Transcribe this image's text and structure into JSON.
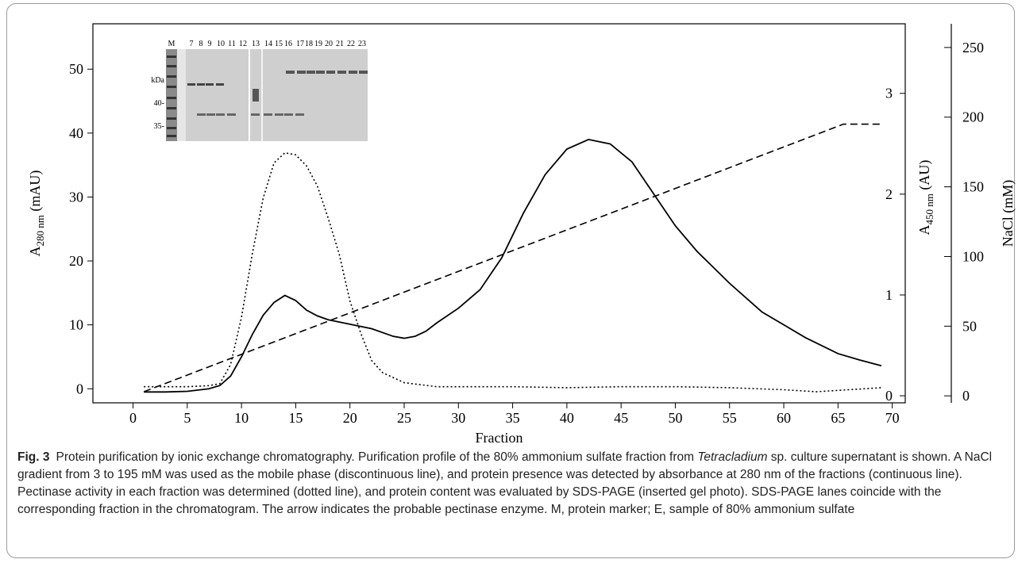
{
  "chart_data": {
    "type": "line",
    "x_label": "Fraction",
    "y_label": {
      "main": "A",
      "sub": "280 nm",
      "unit": " (mAU)"
    },
    "y2_label": {
      "main": "A",
      "sub": "450 nm",
      "unit": " (AU)"
    },
    "y3_label": "NaCl (mM)",
    "xlim": [
      -3.7,
      71.2
    ],
    "xticks": [
      0,
      5,
      10,
      15,
      20,
      25,
      30,
      35,
      40,
      45,
      50,
      55,
      60,
      65,
      70
    ],
    "ylim": [
      -2.2,
      57.1
    ],
    "yticks": [
      0,
      10,
      20,
      30,
      40,
      50
    ],
    "y2lim": [
      -0.07,
      3.69
    ],
    "y2ticks": [
      0,
      1,
      2,
      3
    ],
    "y3lim": [
      -5,
      267
    ],
    "y3ticks": [
      0,
      50,
      100,
      150,
      200,
      250
    ],
    "series": [
      {
        "style": "solid",
        "color": "#000000",
        "axis": "y",
        "x": [
          1,
          3,
          5,
          7,
          8,
          9,
          10,
          11,
          12,
          13,
          14,
          15,
          16,
          17,
          18,
          20,
          22,
          24,
          25,
          26,
          27,
          28,
          30,
          32,
          34,
          36,
          38,
          40,
          42,
          44,
          46,
          48,
          50,
          52,
          55,
          58,
          60,
          62,
          65,
          67,
          69
        ],
        "values": [
          -0.5,
          -0.5,
          -0.4,
          0,
          0.5,
          2,
          5,
          8.5,
          11.5,
          13.5,
          14.6,
          13.8,
          12.3,
          11.4,
          10.8,
          10.1,
          9.4,
          8.2,
          7.9,
          8.2,
          9,
          10.3,
          12.6,
          15.5,
          20.5,
          27.5,
          33.5,
          37.5,
          39,
          38.3,
          35.5,
          30.5,
          25.5,
          21.5,
          16.5,
          12,
          10,
          8,
          5.5,
          4.5,
          3.6
        ]
      },
      {
        "style": "dotted",
        "color": "#000000",
        "axis": "y2",
        "x": [
          1,
          5,
          7,
          8,
          9,
          10,
          11,
          12,
          13,
          14,
          15,
          16,
          17,
          18,
          19,
          20,
          21,
          22,
          23,
          25,
          28,
          35,
          40,
          45,
          50,
          55,
          60,
          63,
          66,
          69
        ],
        "values": [
          0.09,
          0.09,
          0.1,
          0.12,
          0.31,
          0.78,
          1.41,
          1.96,
          2.31,
          2.41,
          2.39,
          2.28,
          2.08,
          1.76,
          1.41,
          0.94,
          0.62,
          0.35,
          0.23,
          0.13,
          0.09,
          0.09,
          0.08,
          0.09,
          0.09,
          0.08,
          0.06,
          0.04,
          0.06,
          0.08
        ]
      },
      {
        "style": "dashed",
        "color": "#000000",
        "axis": "y3",
        "x": [
          1,
          65.5,
          69
        ],
        "values": [
          3,
          195,
          195
        ]
      }
    ],
    "inset": {
      "lane_labels": [
        "M",
        "7",
        "8",
        "9",
        "10",
        "11",
        "12",
        "13",
        "14",
        "15",
        "16",
        "17",
        "18",
        "19",
        "20",
        "21",
        "22",
        "23"
      ],
      "marker_labels": [
        "kDa",
        "40-",
        "35-"
      ]
    },
    "caption": {
      "label": "Fig. 3",
      "parts": [
        {
          "text": "Protein purification by ionic exchange chromatography. Purification profile of the 80% ammonium sulfate fraction from ",
          "italic": false
        },
        {
          "text": "Tetracladium",
          "italic": true
        },
        {
          "text": " sp. culture supernatant is shown. A NaCl gradient from 3 to 195 mM was used as the mobile phase (discontinuous line), and protein presence was detected by absorbance at 280 nm of the fractions (continuous line). Pectinase activity in each fraction was determined (dotted line), and protein content was evaluated by SDS-PAGE (inserted gel photo). SDS-PAGE lanes coincide with the corresponding fraction in the chromatogram. The arrow indicates the probable pectinase enzyme. M, protein marker; E, sample of 80% ammonium sulfate",
          "italic": false
        }
      ]
    }
  }
}
